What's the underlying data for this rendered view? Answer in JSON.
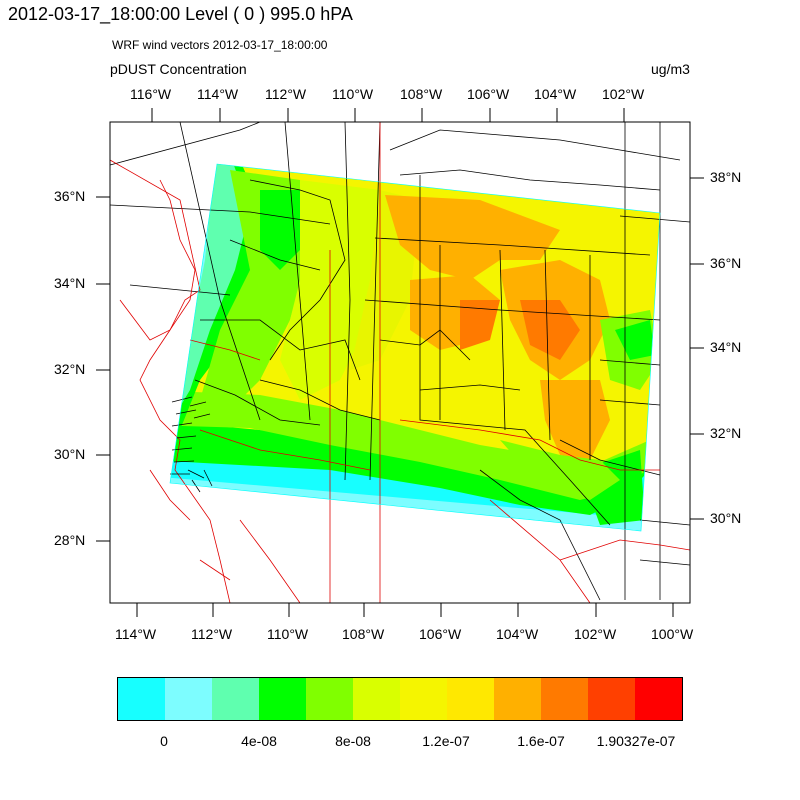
{
  "header": {
    "title": "2012-03-17_18:00:00  Level ( 0 ) 995.0 hPA",
    "subtitle": "WRF wind vectors  2012-03-17_18:00:00",
    "field_name": "pDUST Concentration",
    "units": "ug/m3"
  },
  "map": {
    "top_lon_labels": [
      "116°W",
      "114°W",
      "112°W",
      "110°W",
      "108°W",
      "106°W",
      "104°W",
      "102°W"
    ],
    "bottom_lon_labels": [
      "114°W",
      "112°W",
      "110°W",
      "108°W",
      "106°W",
      "104°W",
      "102°W",
      "100°W"
    ],
    "left_lat_labels": [
      "36°N",
      "34°N",
      "32°N",
      "30°N",
      "28°N"
    ],
    "right_lat_labels": [
      "38°N",
      "36°N",
      "34°N",
      "32°N",
      "30°N"
    ],
    "colors": {
      "state_borders": "#000000",
      "country_borders": "#e00000",
      "domain_edge": "#00ffff"
    }
  },
  "colorbar": {
    "colors": [
      "#17ffff",
      "#7dfdff",
      "#5fffaf",
      "#00ff00",
      "#80ff00",
      "#d9ff00",
      "#f5f500",
      "#ffe800",
      "#ffb000",
      "#ff7a00",
      "#ff4000",
      "#ff0000"
    ],
    "labels": [
      "0",
      "4e-08",
      "8e-08",
      "1.2e-07",
      "1.6e-07",
      "1.90327e-07"
    ]
  }
}
